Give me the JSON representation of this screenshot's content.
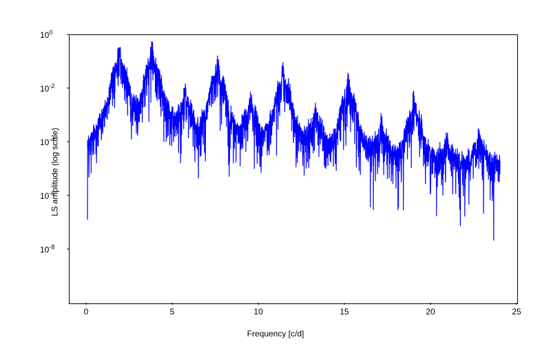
{
  "chart": {
    "type": "line",
    "xlabel": "Frequency [c/d]",
    "ylabel": "LS amplitude (log scale)",
    "xlim": [
      -1,
      25
    ],
    "ylim_log10": [
      -10,
      0
    ],
    "xticks": [
      0,
      5,
      10,
      15,
      20,
      25
    ],
    "yticks_exp": [
      -8,
      -6,
      -4,
      -2,
      0
    ],
    "line_color": "#0000ff",
    "line_width": 1.2,
    "background_color": "#ffffff",
    "border_color": "#000000",
    "label_fontsize": 12,
    "tick_fontsize": 12,
    "peaks": {
      "freqs": [
        1.9,
        3.8,
        5.7,
        7.6,
        9.5,
        11.4,
        13.3,
        15.2,
        17.1,
        19.0,
        20.9,
        22.8
      ],
      "log10_amp": [
        -0.5,
        -0.4,
        -1.9,
        -0.9,
        -2.2,
        -1.2,
        -2.6,
        -1.6,
        -3.2,
        -2.3,
        -3.8,
        -3.7
      ]
    },
    "noise_floor_log10_start": -4.0,
    "noise_floor_log10_end": -4.6,
    "noise_jitter_log10": 1.6,
    "x_start": 0.04,
    "x_end": 24.0,
    "n_points": 2600
  }
}
